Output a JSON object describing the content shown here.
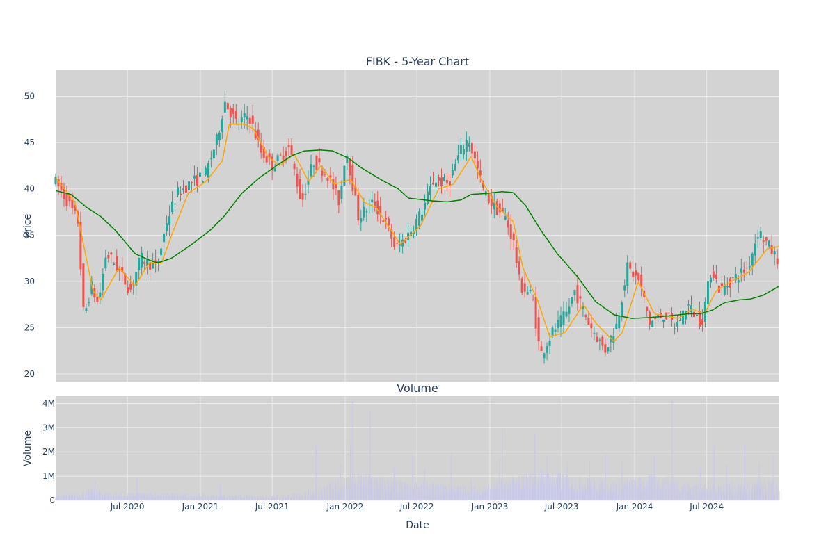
{
  "chart_data": [
    {
      "type": "candlestick",
      "title": "FIBK - 5-Year Chart",
      "xlabel": "",
      "ylabel": "Price",
      "ylim": [
        19.1,
        52.9
      ],
      "yticks": [
        20,
        25,
        30,
        35,
        40,
        45,
        50
      ],
      "x_range": [
        "2020-01-02",
        "2024-12-31"
      ],
      "x_tick_labels": [
        "Jul 2020",
        "Jan 2021",
        "Jul 2021",
        "Jan 2022",
        "Jul 2022",
        "Jan 2023",
        "Jul 2023",
        "Jan 2024",
        "Jul 2024"
      ],
      "x_tick_dates": [
        "2020-07-01",
        "2021-01-01",
        "2021-07-01",
        "2022-01-01",
        "2022-07-01",
        "2023-01-01",
        "2023-07-01",
        "2024-01-01",
        "2024-07-01"
      ],
      "grid": true,
      "colors": {
        "up": "#26a69a",
        "down": "#ef5350",
        "short_ma": "#ffa500",
        "long_ma": "#008000",
        "plot_bg": "#d3d3d3",
        "grid": "#ebebeb"
      },
      "price_anchors": [
        [
          "2020-01-02",
          41.2
        ],
        [
          "2020-02-10",
          38.5
        ],
        [
          "2020-03-05",
          36.5
        ],
        [
          "2020-03-20",
          26.0
        ],
        [
          "2020-04-08",
          29.5
        ],
        [
          "2020-04-25",
          27.5
        ],
        [
          "2020-05-15",
          33.0
        ],
        [
          "2020-06-05",
          32.0
        ],
        [
          "2020-06-25",
          30.5
        ],
        [
          "2020-07-15",
          29.0
        ],
        [
          "2020-08-10",
          32.5
        ],
        [
          "2020-09-20",
          31.5
        ],
        [
          "2020-10-15",
          36.5
        ],
        [
          "2020-11-10",
          39.5
        ],
        [
          "2020-12-10",
          40.5
        ],
        [
          "2021-01-20",
          41.5
        ],
        [
          "2021-02-20",
          45.5
        ],
        [
          "2021-03-10",
          49.5
        ],
        [
          "2021-04-10",
          47.0
        ],
        [
          "2021-05-10",
          48.0
        ],
        [
          "2021-06-10",
          44.0
        ],
        [
          "2021-07-10",
          42.5
        ],
        [
          "2021-08-20",
          44.5
        ],
        [
          "2021-09-20",
          38.5
        ],
        [
          "2021-10-20",
          43.0
        ],
        [
          "2021-11-25",
          41.5
        ],
        [
          "2021-12-25",
          38.5
        ],
        [
          "2022-01-10",
          44.5
        ],
        [
          "2022-02-10",
          37.0
        ],
        [
          "2022-03-20",
          38.5
        ],
        [
          "2022-04-25",
          36.0
        ],
        [
          "2022-05-15",
          33.5
        ],
        [
          "2022-06-15",
          35.0
        ],
        [
          "2022-07-20",
          37.5
        ],
        [
          "2022-08-20",
          41.0
        ],
        [
          "2022-09-25",
          40.5
        ],
        [
          "2022-10-25",
          44.0
        ],
        [
          "2022-11-15",
          45.5
        ],
        [
          "2022-12-25",
          39.5
        ],
        [
          "2023-01-20",
          38.0
        ],
        [
          "2023-02-15",
          37.0
        ],
        [
          "2023-03-10",
          34.0
        ],
        [
          "2023-03-25",
          29.5
        ],
        [
          "2023-04-25",
          28.5
        ],
        [
          "2023-05-15",
          22.0
        ],
        [
          "2023-06-15",
          24.5
        ],
        [
          "2023-07-20",
          26.5
        ],
        [
          "2023-08-10",
          29.0
        ],
        [
          "2023-09-15",
          25.5
        ],
        [
          "2023-10-25",
          22.5
        ],
        [
          "2023-11-25",
          25.5
        ],
        [
          "2023-12-20",
          31.5
        ],
        [
          "2024-01-20",
          30.0
        ],
        [
          "2024-02-15",
          25.5
        ],
        [
          "2024-03-25",
          26.5
        ],
        [
          "2024-04-20",
          25.0
        ],
        [
          "2024-05-20",
          27.5
        ],
        [
          "2024-06-25",
          25.5
        ],
        [
          "2024-07-20",
          31.5
        ],
        [
          "2024-08-10",
          29.0
        ],
        [
          "2024-09-20",
          30.5
        ],
        [
          "2024-10-20",
          31.5
        ],
        [
          "2024-11-15",
          35.5
        ],
        [
          "2024-12-31",
          32.5
        ]
      ],
      "series": [
        {
          "type": "line",
          "anchors": [
            [
              "2020-01-02",
              41.2
            ],
            [
              "2020-02-20",
              38.5
            ],
            [
              "2020-04-05",
              29.0
            ],
            [
              "2020-04-25",
              28.0
            ],
            [
              "2020-06-10",
              31.5
            ],
            [
              "2020-07-20",
              29.5
            ],
            [
              "2020-08-25",
              32.0
            ],
            [
              "2020-09-25",
              32.0
            ],
            [
              "2020-10-25",
              35.5
            ],
            [
              "2020-12-01",
              39.5
            ],
            [
              "2021-01-15",
              40.8
            ],
            [
              "2021-02-25",
              43.0
            ],
            [
              "2021-03-15",
              47.0
            ],
            [
              "2021-04-20",
              47.0
            ],
            [
              "2021-05-15",
              46.5
            ],
            [
              "2021-06-20",
              43.5
            ],
            [
              "2021-07-20",
              42.5
            ],
            [
              "2021-08-25",
              43.8
            ],
            [
              "2021-10-01",
              40.8
            ],
            [
              "2021-11-01",
              42.5
            ],
            [
              "2021-12-05",
              40.5
            ],
            [
              "2022-01-15",
              41.0
            ],
            [
              "2022-02-20",
              38.5
            ],
            [
              "2022-03-20",
              38.0
            ],
            [
              "2022-05-20",
              34.0
            ],
            [
              "2022-07-10",
              36.0
            ],
            [
              "2022-08-25",
              40.0
            ],
            [
              "2022-10-01",
              40.5
            ],
            [
              "2022-11-15",
              43.5
            ],
            [
              "2022-12-10",
              41.0
            ],
            [
              "2023-01-20",
              38.0
            ],
            [
              "2023-03-01",
              36.5
            ],
            [
              "2023-03-25",
              31.5
            ],
            [
              "2023-05-01",
              28.0
            ],
            [
              "2023-06-01",
              24.0
            ],
            [
              "2023-07-10",
              24.5
            ],
            [
              "2023-08-25",
              27.5
            ],
            [
              "2023-09-25",
              25.5
            ],
            [
              "2023-11-10",
              23.5
            ],
            [
              "2023-12-01",
              24.5
            ],
            [
              "2024-01-10",
              30.0
            ],
            [
              "2024-02-20",
              26.5
            ],
            [
              "2024-04-20",
              26.0
            ],
            [
              "2024-05-25",
              27.0
            ],
            [
              "2024-06-25",
              26.5
            ],
            [
              "2024-07-25",
              29.0
            ],
            [
              "2024-09-01",
              30.0
            ],
            [
              "2024-10-15",
              31.0
            ],
            [
              "2024-11-30",
              33.5
            ],
            [
              "2024-12-31",
              33.8
            ]
          ]
        },
        {
          "type": "line",
          "anchors": [
            [
              "2020-01-02",
              39.8
            ],
            [
              "2020-02-10",
              39.4
            ],
            [
              "2020-03-20",
              38.0
            ],
            [
              "2020-04-25",
              37.0
            ],
            [
              "2020-06-01",
              35.5
            ],
            [
              "2020-07-20",
              33.0
            ],
            [
              "2020-08-25",
              32.3
            ],
            [
              "2020-09-15",
              32.0
            ],
            [
              "2020-10-20",
              32.5
            ],
            [
              "2020-12-10",
              34.0
            ],
            [
              "2021-01-25",
              35.5
            ],
            [
              "2021-03-01",
              37.0
            ],
            [
              "2021-04-15",
              39.5
            ],
            [
              "2021-05-30",
              41.2
            ],
            [
              "2021-07-15",
              42.6
            ],
            [
              "2021-08-20",
              43.6
            ],
            [
              "2021-09-20",
              44.1
            ],
            [
              "2021-11-01",
              44.2
            ],
            [
              "2021-12-01",
              44.1
            ],
            [
              "2022-01-10",
              43.3
            ],
            [
              "2022-02-10",
              42.3
            ],
            [
              "2022-04-01",
              41.0
            ],
            [
              "2022-05-15",
              40.0
            ],
            [
              "2022-06-10",
              39.0
            ],
            [
              "2022-08-10",
              38.7
            ],
            [
              "2022-09-15",
              38.6
            ],
            [
              "2022-10-20",
              38.8
            ],
            [
              "2022-11-15",
              39.4
            ],
            [
              "2022-12-20",
              39.5
            ],
            [
              "2023-02-01",
              39.7
            ],
            [
              "2023-03-01",
              39.6
            ],
            [
              "2023-04-01",
              38.2
            ],
            [
              "2023-05-10",
              35.5
            ],
            [
              "2023-06-20",
              33.0
            ],
            [
              "2023-08-10",
              30.5
            ],
            [
              "2023-09-25",
              27.8
            ],
            [
              "2023-11-10",
              26.4
            ],
            [
              "2023-12-25",
              26.0
            ],
            [
              "2024-02-10",
              26.1
            ],
            [
              "2024-04-01",
              26.3
            ],
            [
              "2024-05-15",
              26.5
            ],
            [
              "2024-06-15",
              26.5
            ],
            [
              "2024-07-15",
              26.9
            ],
            [
              "2024-08-15",
              27.7
            ],
            [
              "2024-09-20",
              28.0
            ],
            [
              "2024-10-20",
              28.1
            ],
            [
              "2024-11-20",
              28.5
            ],
            [
              "2024-12-31",
              29.5
            ]
          ]
        }
      ]
    },
    {
      "type": "bar",
      "title": "Volume",
      "xlabel": "Date",
      "ylabel": "Volume",
      "ylim": [
        0,
        4300000
      ],
      "yticks": [
        0,
        1000000,
        2000000,
        3000000,
        4000000
      ],
      "ytick_labels": [
        "0",
        "1M",
        "2M",
        "3M",
        "4M"
      ],
      "bar_color": "#c9c9e8",
      "volume_level_anchors": [
        [
          "2020-01-02",
          200000
        ],
        [
          "2020-03-01",
          250000
        ],
        [
          "2020-04-01",
          400000
        ],
        [
          "2020-06-01",
          280000
        ],
        [
          "2020-12-01",
          250000
        ],
        [
          "2021-06-01",
          200000
        ],
        [
          "2021-09-01",
          250000
        ],
        [
          "2021-11-01",
          500000
        ],
        [
          "2022-01-15",
          900000
        ],
        [
          "2022-03-01",
          1000000
        ],
        [
          "2022-05-01",
          700000
        ],
        [
          "2022-09-01",
          600000
        ],
        [
          "2022-12-01",
          500000
        ],
        [
          "2023-03-01",
          800000
        ],
        [
          "2023-05-15",
          1100000
        ],
        [
          "2023-08-01",
          850000
        ],
        [
          "2023-11-01",
          650000
        ],
        [
          "2024-03-01",
          900000
        ],
        [
          "2024-06-01",
          600000
        ],
        [
          "2024-12-31",
          700000
        ]
      ],
      "volume_spikes": [
        [
          "2020-04-10",
          800000
        ],
        [
          "2020-07-25",
          900000
        ],
        [
          "2021-02-20",
          650000
        ],
        [
          "2021-10-20",
          2350000
        ],
        [
          "2021-12-20",
          1500000
        ],
        [
          "2022-01-20",
          4100000
        ],
        [
          "2022-01-14",
          2300000
        ],
        [
          "2022-03-05",
          3700000
        ],
        [
          "2022-05-05",
          1400000
        ],
        [
          "2022-06-20",
          1850000
        ],
        [
          "2022-07-20",
          1300000
        ],
        [
          "2022-09-25",
          1950000
        ],
        [
          "2022-11-15",
          800000
        ],
        [
          "2023-02-01",
          2950000
        ],
        [
          "2023-01-25",
          1700000
        ],
        [
          "2023-04-25",
          2750000
        ],
        [
          "2023-05-25",
          1800000
        ],
        [
          "2023-07-15",
          1550000
        ],
        [
          "2023-09-10",
          1650000
        ],
        [
          "2023-10-20",
          1900000
        ],
        [
          "2023-11-30",
          1550000
        ],
        [
          "2024-01-15",
          900000
        ],
        [
          "2024-02-20",
          1850000
        ],
        [
          "2024-04-05",
          4100000
        ],
        [
          "2024-06-15",
          1400000
        ],
        [
          "2024-07-20",
          2250000
        ],
        [
          "2024-08-20",
          1450000
        ],
        [
          "2024-10-05",
          2300000
        ],
        [
          "2024-11-10",
          1500000
        ],
        [
          "2024-12-15",
          1900000
        ]
      ]
    }
  ]
}
